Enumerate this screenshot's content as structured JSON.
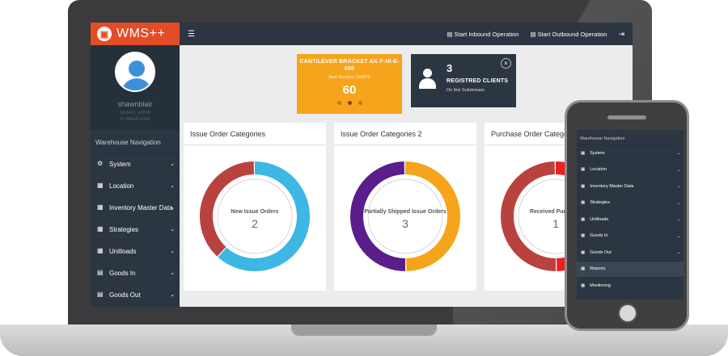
{
  "app": {
    "name": "WMS++"
  },
  "profile": {
    "name": "shawnblair",
    "role": "system_admin",
    "warehouse": "in Warehouse"
  },
  "topbar": {
    "inbound_label": "Start Inbound Operation",
    "outbound_label": "Start Outbound Operation"
  },
  "sidebar": {
    "title": "Warehouse Navigation",
    "items": [
      {
        "label": "System",
        "icon": "cogs-icon"
      },
      {
        "label": "Location",
        "icon": "grid-icon"
      },
      {
        "label": "Inventory Master Data",
        "icon": "grid-icon"
      },
      {
        "label": "Strategies",
        "icon": "grid-icon"
      },
      {
        "label": "Unitloads",
        "icon": "grid-icon"
      },
      {
        "label": "Goods In",
        "icon": "document-icon"
      },
      {
        "label": "Goods Out",
        "icon": "document-icon"
      }
    ]
  },
  "cards": {
    "orange": {
      "title": "CANTILEVER BRACKET AK F-NI-E-000",
      "sub": "Item Number 115079",
      "value": "60"
    },
    "dark": {
      "value": "3",
      "label": "REGISTRED CLIENTS",
      "sub": "On this Subdomain"
    }
  },
  "panels": [
    {
      "title": "Issue Order Categories",
      "center_label": "New Issue Orders",
      "center_value": "2",
      "colors": [
        "#3db7e4",
        "#b9423f"
      ],
      "fractions": [
        0.62,
        0.38
      ]
    },
    {
      "title": "Issue Order Categories 2",
      "center_label": "Partially Shipped Issue Orders",
      "center_value": "3",
      "colors": [
        "#f7a41d",
        "#5a1e8c"
      ],
      "fractions": [
        0.5,
        0.5
      ]
    },
    {
      "title": "Purchase Order Categories",
      "center_label": "Received Purchase",
      "center_value": "1",
      "colors": [
        "#ef1f1f",
        "#b9423f"
      ],
      "fractions": [
        0.5,
        0.5
      ]
    }
  ],
  "phone": {
    "title": "Warehouse Navigation",
    "items": [
      {
        "label": "System"
      },
      {
        "label": "Location"
      },
      {
        "label": "Inventory Master Data"
      },
      {
        "label": "Strategies"
      },
      {
        "label": "Unitloads"
      },
      {
        "label": "Goods In"
      },
      {
        "label": "Goods Out"
      },
      {
        "label": "Reports"
      },
      {
        "label": "Monitoring"
      }
    ]
  }
}
